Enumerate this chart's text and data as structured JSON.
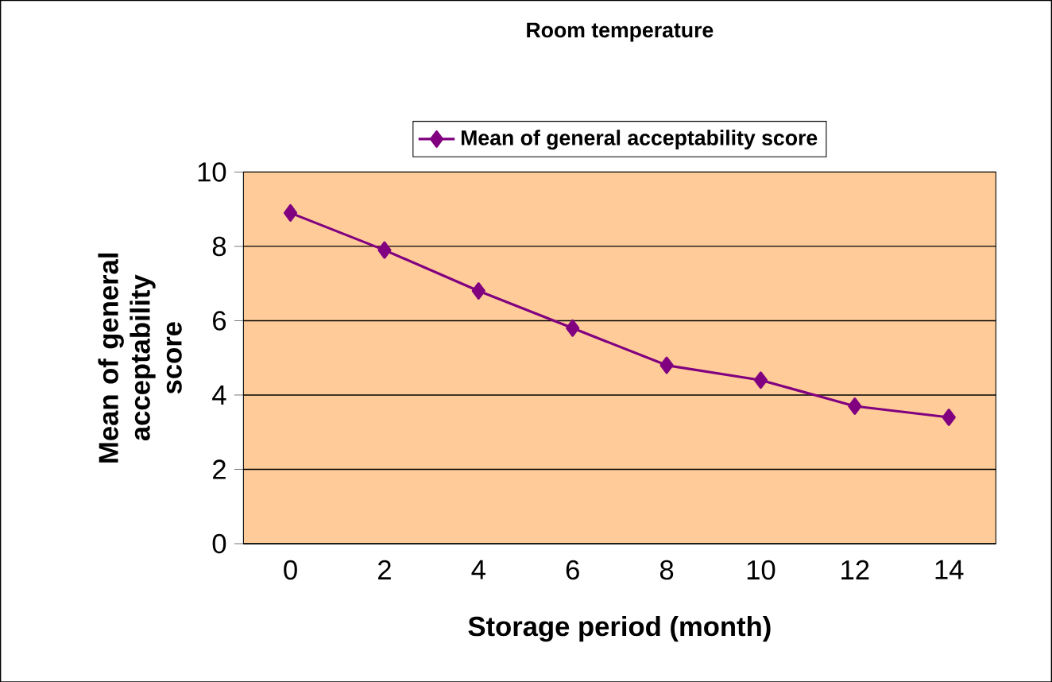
{
  "chart_data": {
    "type": "line",
    "title": "Room temperature",
    "xlabel": "Storage period (month)",
    "ylabel": "Mean of general acceptability score",
    "categories": [
      "0",
      "2",
      "4",
      "6",
      "8",
      "10",
      "12",
      "14"
    ],
    "series": [
      {
        "name": "Mean of general acceptability score",
        "color": "#800080",
        "values": [
          8.9,
          7.9,
          6.8,
          5.8,
          4.8,
          4.4,
          3.7,
          3.4
        ]
      }
    ],
    "ylim": [
      0,
      10
    ],
    "yticks": [
      0,
      2,
      4,
      6,
      8,
      10
    ],
    "grid": "y",
    "legend": "top",
    "marker": "diamond",
    "line_style": "solid"
  }
}
